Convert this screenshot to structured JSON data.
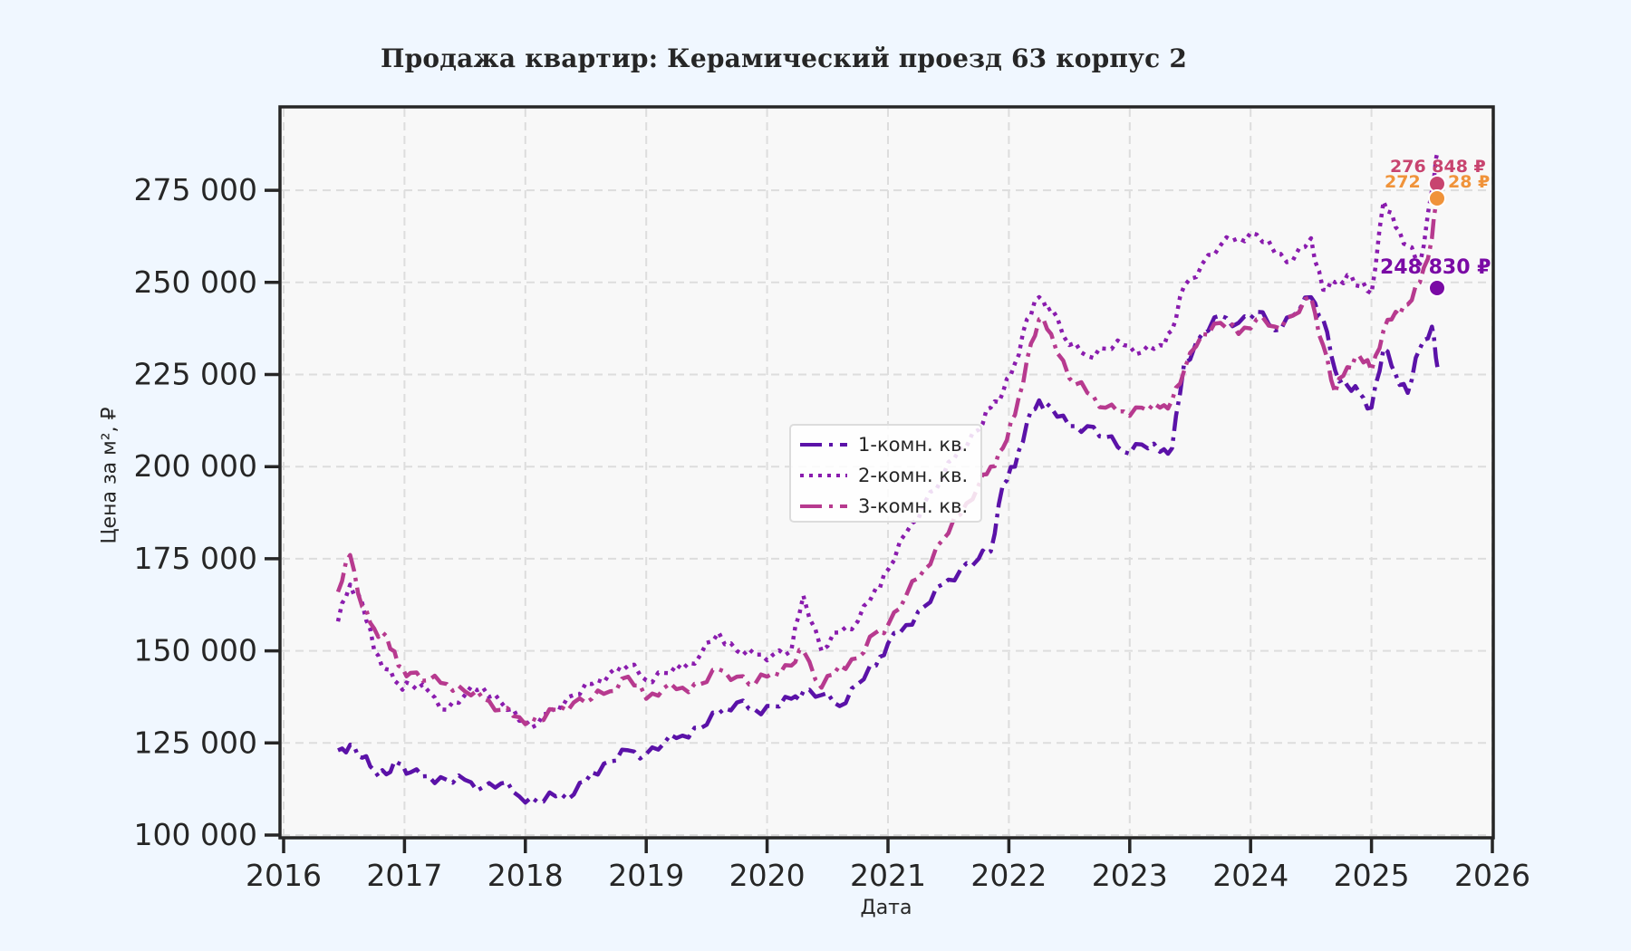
{
  "title": "Продажа квартир: Керамический проезд 63 корпус 2",
  "chart_data": {
    "type": "line",
    "title": "Продажа квартир: Керамический проезд 63 корпус 2",
    "xlabel": "Дата",
    "ylabel": "Цена за м², ₽",
    "xlim": [
      2016,
      2026
    ],
    "ylim": [
      99000,
      297000
    ],
    "grid": true,
    "legend_position": "center",
    "x_ticks": [
      "2016",
      "2017",
      "2018",
      "2019",
      "2020",
      "2021",
      "2022",
      "2023",
      "2024",
      "2025",
      "2026"
    ],
    "y_ticks": [
      "100 000",
      "125 000",
      "150 000",
      "175 000",
      "200 000",
      "225 000",
      "250 000",
      "275 000"
    ],
    "y_tick_values": [
      100000,
      125000,
      150000,
      175000,
      200000,
      225000,
      250000,
      275000
    ],
    "x": [
      2016.45,
      2016.55,
      2016.65,
      2016.75,
      2016.85,
      2016.95,
      2017.05,
      2017.2,
      2017.35,
      2017.5,
      2017.65,
      2017.8,
      2017.95,
      2018.1,
      2018.25,
      2018.4,
      2018.55,
      2018.7,
      2018.85,
      2019.0,
      2019.15,
      2019.3,
      2019.45,
      2019.6,
      2019.75,
      2019.9,
      2020.05,
      2020.2,
      2020.3,
      2020.45,
      2020.6,
      2020.75,
      2020.9,
      2021.0,
      2021.15,
      2021.3,
      2021.45,
      2021.6,
      2021.75,
      2021.85,
      2021.95,
      2022.05,
      2022.15,
      2022.25,
      2022.35,
      2022.5,
      2022.65,
      2022.8,
      2022.95,
      2023.1,
      2023.25,
      2023.35,
      2023.45,
      2023.6,
      2023.75,
      2023.9,
      2024.05,
      2024.2,
      2024.35,
      2024.5,
      2024.6,
      2024.7,
      2024.8,
      2024.9,
      2025.0,
      2025.1,
      2025.2,
      2025.3,
      2025.4,
      2025.5,
      2025.55
    ],
    "series": [
      {
        "name": "1-комн. кв.",
        "style": "dashdot",
        "color": "#5b12a8",
        "values": [
          123000,
          124500,
          121000,
          117500,
          116500,
          119500,
          117000,
          116000,
          115000,
          115000,
          113000,
          114000,
          110500,
          109000,
          110500,
          111000,
          117000,
          120000,
          123000,
          122000,
          125000,
          127000,
          129000,
          133000,
          136000,
          134000,
          135000,
          137000,
          139000,
          138000,
          135000,
          141000,
          146000,
          152000,
          157000,
          162000,
          168000,
          172000,
          175000,
          177000,
          195000,
          200000,
          212000,
          218000,
          216000,
          211000,
          211000,
          208000,
          204000,
          206000,
          204000,
          205000,
          228000,
          236000,
          241000,
          239000,
          242000,
          237000,
          241000,
          246000,
          240000,
          226000,
          222000,
          220000,
          216000,
          232000,
          225000,
          220000,
          232000,
          238000,
          226000
        ]
      },
      {
        "name": "2-комн. кв.",
        "style": "dotted",
        "color": "#8a1cae",
        "values": [
          158000,
          168000,
          163000,
          150000,
          145000,
          141000,
          141000,
          139000,
          134000,
          138000,
          140000,
          136000,
          131000,
          130000,
          135000,
          138000,
          141000,
          144000,
          146000,
          142000,
          144000,
          145000,
          149000,
          155000,
          150000,
          149000,
          149000,
          150000,
          165000,
          150000,
          155000,
          158000,
          167000,
          172000,
          182000,
          190000,
          197000,
          205000,
          210000,
          216000,
          220000,
          228000,
          240000,
          246000,
          243000,
          233000,
          230000,
          232000,
          233000,
          231000,
          233000,
          237000,
          249000,
          255000,
          260000,
          262000,
          263000,
          258000,
          256000,
          262000,
          248000,
          250000,
          252000,
          249000,
          247000,
          272000,
          265000,
          260000,
          255000,
          275000,
          286000
        ]
      },
      {
        "name": "3-комн. кв.",
        "style": "dashdot",
        "color": "#b73a8f",
        "values": [
          166000,
          176000,
          162000,
          156000,
          154000,
          146000,
          144000,
          142000,
          141000,
          139000,
          137000,
          134000,
          132000,
          131000,
          134000,
          136000,
          137000,
          139000,
          143000,
          137000,
          140000,
          140000,
          141000,
          145000,
          143000,
          141000,
          144000,
          146000,
          150000,
          140000,
          146000,
          148000,
          155000,
          157000,
          165000,
          172000,
          180000,
          187000,
          195000,
          200000,
          205000,
          214000,
          229000,
          240000,
          236000,
          224000,
          220000,
          216000,
          215000,
          216000,
          216000,
          218000,
          226000,
          236000,
          239000,
          236000,
          240000,
          238000,
          241000,
          246000,
          233000,
          220000,
          227000,
          230000,
          226000,
          237000,
          242000,
          244000,
          250000,
          262000,
          276848
        ]
      }
    ],
    "annotations": [
      {
        "text": "276 848 ₽",
        "value": 276848,
        "x": 2025.55,
        "color": "#c8446f"
      },
      {
        "text": "272 ?28 ₽",
        "value": 272628,
        "x": 2025.55,
        "color": "#f0933a"
      },
      {
        "text": "248 830 ₽",
        "value": 248830,
        "x": 2025.55,
        "color": "#7a0aa5"
      }
    ]
  },
  "legend": {
    "items": [
      {
        "label": "1-комн. кв.",
        "color": "#5b12a8",
        "style": "dashdot"
      },
      {
        "label": "2-комн. кв.",
        "color": "#8a1cae",
        "style": "dotted"
      },
      {
        "label": "3-комн. кв.",
        "color": "#b73a8f",
        "style": "dashdot"
      }
    ]
  },
  "annotation_labels": {
    "a1": "276 848 ₽",
    "a2_left": "272",
    "a2_right": "28 ₽",
    "a3": "248 830 ₽"
  }
}
